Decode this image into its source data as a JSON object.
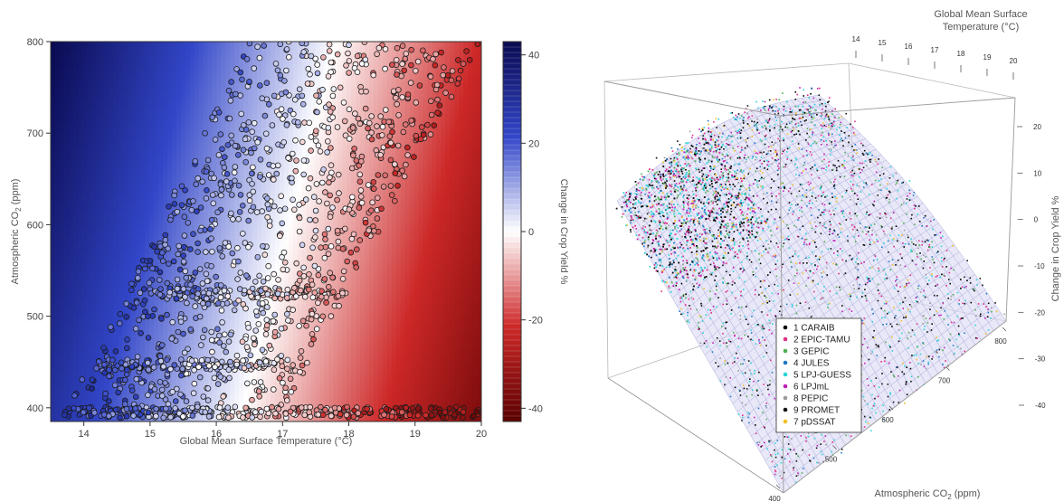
{
  "chart_data": [
    {
      "type": "heatmap",
      "xlabel": "Global Mean Surface Temperature (°C)",
      "ylabel_parts": [
        "Atmospheric CO",
        "2",
        " (ppm)"
      ],
      "xlim": [
        13.5,
        20
      ],
      "ylim": [
        385,
        800
      ],
      "x_ticks": [
        14,
        15,
        16,
        17,
        18,
        19,
        20
      ],
      "y_ticks": [
        400,
        500,
        600,
        700,
        800
      ],
      "colorbar": {
        "label": "Change in Crop Yield %",
        "range": [
          -43,
          43
        ],
        "ticks": [
          40,
          20,
          0,
          -20,
          -40
        ],
        "low_color": "#5a0000",
        "mid_color": "#ffffff",
        "high_color": "#0a0a50"
      },
      "surface_model": {
        "ref_temp": 13.5,
        "ref_co2": 800,
        "temp_coef": -10,
        "co2_coef": 0.035,
        "max_value": 43
      },
      "point_bands": [
        {
          "co2": 395,
          "t_min": 13.7,
          "t_max": 20,
          "n": 160
        },
        {
          "co2": 447,
          "t_min": 14.2,
          "t_max": 17.0,
          "n": 60
        },
        {
          "co2": 525,
          "t_min": 15.0,
          "t_max": 17.8,
          "n": 60
        }
      ]
    },
    {
      "type": "scatter",
      "projection": "3d",
      "x_title_lines": [
        "Global Mean Surface",
        "Temperature (°C)"
      ],
      "x_ticks": [
        14,
        15,
        16,
        17,
        18,
        19,
        20
      ],
      "y_title_parts": [
        "Atmospheric CO",
        "2",
        " (ppm)"
      ],
      "y_ticks": [
        400,
        500,
        600,
        700,
        800
      ],
      "z_title": "Change in Crop Yield %",
      "z_ticks": [
        20,
        10,
        0,
        -10,
        -20,
        -30,
        -40
      ],
      "series": [
        {
          "name": "1 CARAIB",
          "color": "#000000"
        },
        {
          "name": "2 EPIC-TAMU",
          "color": "#e0308a"
        },
        {
          "name": "3 GEPIC",
          "color": "#4cb050"
        },
        {
          "name": "4 JULES",
          "color": "#1f78c8"
        },
        {
          "name": "5 LPJ-GUESS",
          "color": "#2ad3d8"
        },
        {
          "name": "6 LPJmL",
          "color": "#c020b8"
        },
        {
          "name": "8 PEPIC",
          "color": "#9a9a9a"
        },
        {
          "name": "9 PROMET",
          "color": "#111111"
        },
        {
          "name": "7 pDSSAT",
          "color": "#f0c020"
        }
      ]
    }
  ]
}
